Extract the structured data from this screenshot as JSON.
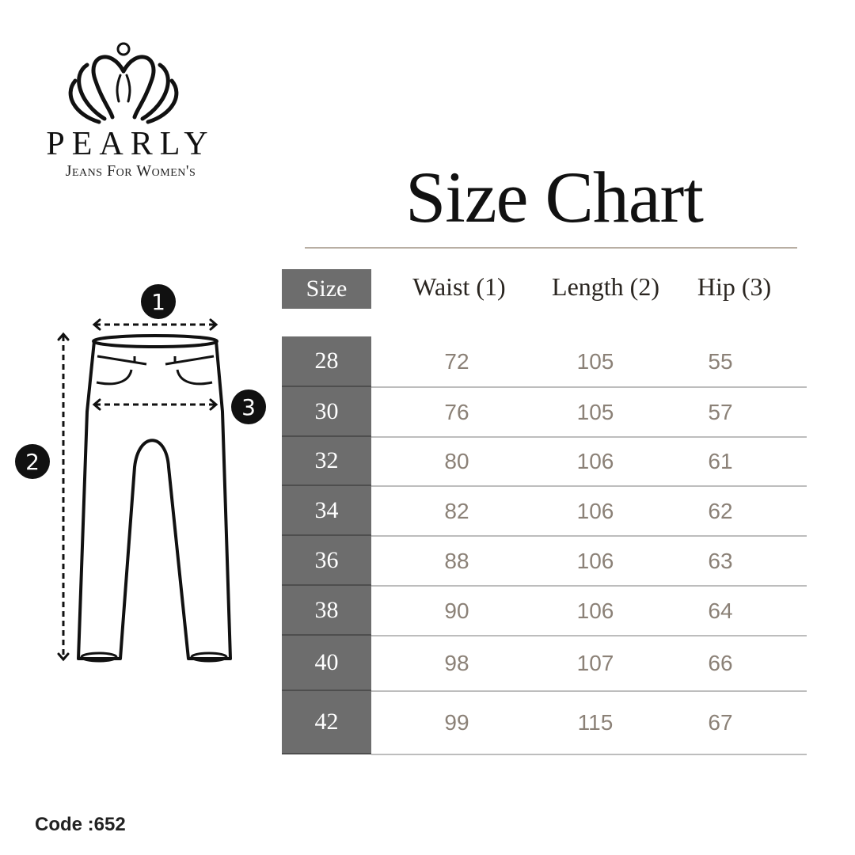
{
  "brand": {
    "name": "PEARLY",
    "tagline": "Jeans For Women's",
    "logo_icon": "crown-pearl-logo"
  },
  "title": "Size Chart",
  "diagram": {
    "markers": [
      "1",
      "2",
      "3"
    ],
    "icon": "pants-measurement-diagram"
  },
  "table": {
    "headers": [
      "Size",
      "Waist (1)",
      "Length (2)",
      "Hip (3)"
    ],
    "rows": [
      {
        "size": "28",
        "waist": "72",
        "length": "105",
        "hip": "55"
      },
      {
        "size": "30",
        "waist": "76",
        "length": "105",
        "hip": "57"
      },
      {
        "size": "32",
        "waist": "80",
        "length": "106",
        "hip": "61"
      },
      {
        "size": "34",
        "waist": "82",
        "length": "106",
        "hip": "62"
      },
      {
        "size": "36",
        "waist": "88",
        "length": "106",
        "hip": "63"
      },
      {
        "size": "38",
        "waist": "90",
        "length": "106",
        "hip": "64"
      },
      {
        "size": "40",
        "waist": "98",
        "length": "107",
        "hip": "66"
      },
      {
        "size": "42",
        "waist": "99",
        "length": "115",
        "hip": "67"
      }
    ]
  },
  "code": "Code :652",
  "colors": {
    "size_column": "#6d6d6d",
    "value_text": "#8b8177",
    "rule": "#b8aea3"
  }
}
